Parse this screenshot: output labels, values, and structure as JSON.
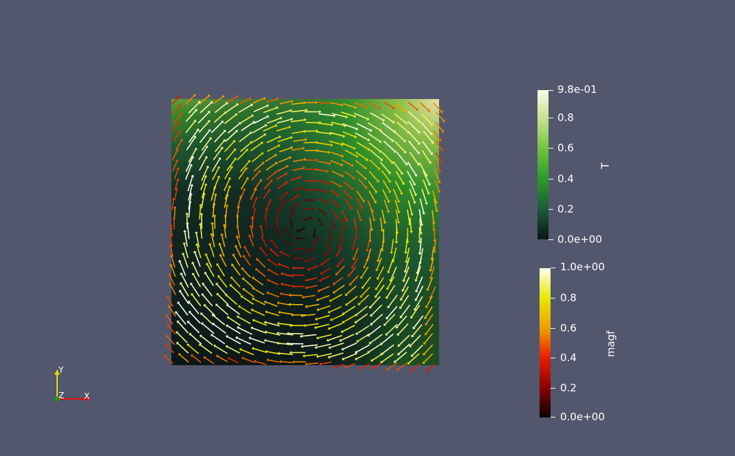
{
  "view": {
    "background": "#52576e"
  },
  "colorbar_T": {
    "title": "T",
    "labels": [
      "9.8e-01",
      "0.8",
      "0.6",
      "0.4",
      "0.2",
      "0.0e+00"
    ],
    "range": [
      0.0,
      0.98
    ],
    "colors": [
      "#0b1515",
      "#1d5a3a",
      "#2a9a2a",
      "#6fc23a",
      "#c5e08a",
      "#fbfbe6"
    ]
  },
  "colorbar_magf": {
    "title": "magf",
    "labels": [
      "1.0e+00",
      "0.8",
      "0.6",
      "0.4",
      "0.2",
      "0.0e+00"
    ],
    "range": [
      0.0,
      1.0
    ],
    "colors": [
      "#0a0000",
      "#8b0000",
      "#e81e00",
      "#f0a000",
      "#e8e800",
      "#fffff0"
    ]
  },
  "axes": {
    "x": "X",
    "y": "Y",
    "z": "Z"
  }
}
